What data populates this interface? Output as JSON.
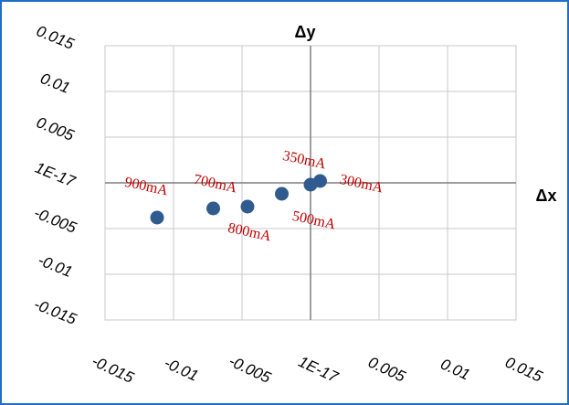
{
  "chart_data": {
    "type": "scatter",
    "x_label": "Δx",
    "y_label": "Δy",
    "x": [
      -0.0112,
      -0.0071,
      -0.0046,
      -0.0021,
      0,
      0.0007
    ],
    "values": [
      -0.0038,
      -0.0028,
      -0.0026,
      -0.0012,
      -0.0002,
      0.0002
    ],
    "point_labels": [
      "900mA",
      "700mA",
      "800mA",
      "500mA",
      "350mA",
      "300mA"
    ],
    "color": "#2f5b8f",
    "label_color": "#c00000",
    "xlim": [
      -0.015,
      0.015
    ],
    "ylim": [
      -0.015,
      0.015
    ],
    "xticks": [
      -0.015,
      -0.01,
      -0.005,
      {
        "value": 1e-17,
        "label": "1E-17"
      },
      0.005,
      0.01,
      0.015
    ],
    "yticks": [
      -0.015,
      -0.01,
      -0.005,
      {
        "value": 1e-17,
        "label": "1E-17"
      },
      0.005,
      0.01,
      0.015
    ],
    "grid": true
  }
}
